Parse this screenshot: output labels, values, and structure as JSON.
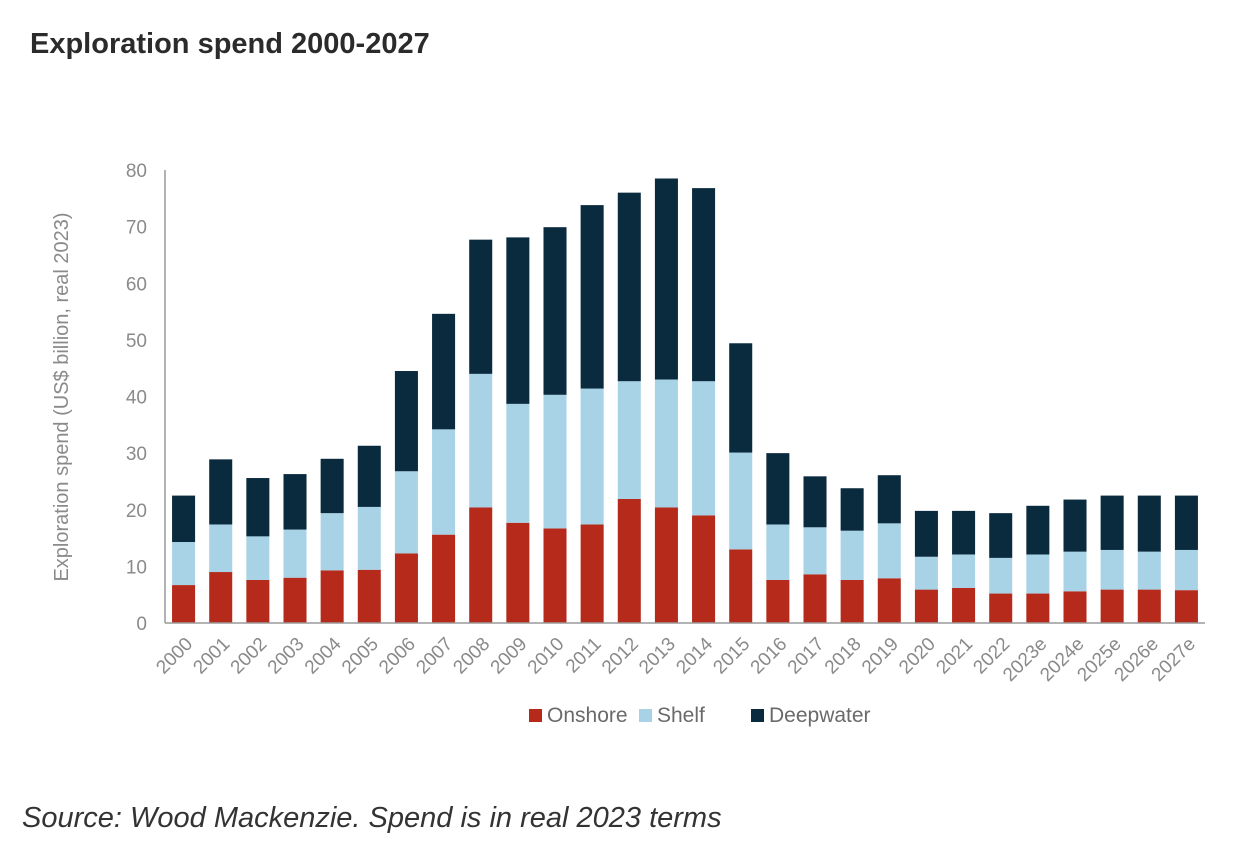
{
  "page": {
    "title": "Exploration spend 2000-2027",
    "source": "Source: Wood Mackenzie. Spend is in real 2023 terms"
  },
  "chart_data": {
    "type": "bar",
    "stacked": true,
    "title": "Exploration spend 2000-2027",
    "xlabel": "",
    "ylabel": "Exploration spend (US$ billion, real 2023)",
    "ylim": [
      0,
      80
    ],
    "yticks": [
      0,
      10,
      20,
      30,
      40,
      50,
      60,
      70,
      80
    ],
    "grid": false,
    "legend_position": "bottom",
    "categories": [
      "2000",
      "2001",
      "2002",
      "2003",
      "2004",
      "2005",
      "2006",
      "2007",
      "2008",
      "2009",
      "2010",
      "2011",
      "2012",
      "2013",
      "2014",
      "2015",
      "2016",
      "2017",
      "2018",
      "2019",
      "2020",
      "2021",
      "2022",
      "2023e",
      "2024e",
      "2025e",
      "2026e",
      "2027e"
    ],
    "series": [
      {
        "name": "Onshore",
        "color": "#b52a1a",
        "values": [
          6.7,
          9.0,
          7.6,
          8.0,
          9.3,
          9.4,
          12.3,
          15.6,
          20.4,
          17.7,
          16.7,
          17.4,
          21.9,
          20.4,
          19.0,
          13.0,
          7.6,
          8.6,
          7.6,
          7.9,
          5.9,
          6.2,
          5.2,
          5.2,
          5.6,
          5.9,
          5.9,
          5.8
        ]
      },
      {
        "name": "Shelf",
        "color": "#a8d3e6",
        "values": [
          7.6,
          8.4,
          7.7,
          8.5,
          10.1,
          11.1,
          14.5,
          18.6,
          23.6,
          21.0,
          23.6,
          24.0,
          20.8,
          22.6,
          23.7,
          17.1,
          9.8,
          8.3,
          8.7,
          9.7,
          5.8,
          5.9,
          6.3,
          6.9,
          7.0,
          7.0,
          6.7,
          7.1
        ]
      },
      {
        "name": "Deepwater",
        "color": "#0a2b3e",
        "values": [
          8.2,
          11.5,
          10.3,
          9.8,
          9.6,
          10.8,
          17.7,
          20.4,
          23.7,
          29.4,
          29.6,
          32.4,
          33.3,
          35.5,
          34.1,
          19.3,
          12.6,
          9.0,
          7.5,
          8.5,
          8.1,
          7.7,
          7.9,
          8.6,
          9.2,
          9.6,
          9.9,
          9.6
        ]
      }
    ]
  }
}
